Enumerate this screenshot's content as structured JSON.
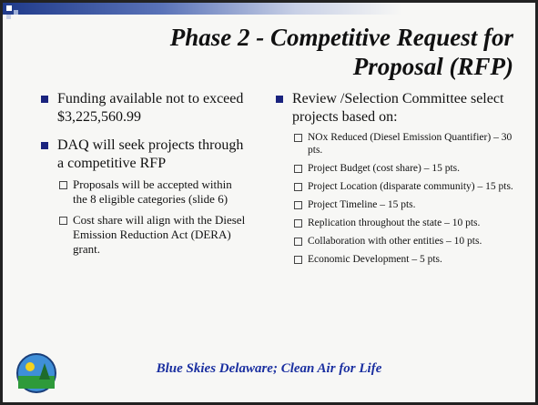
{
  "slide": {
    "title": [
      "Phase 2  - Competitive Request for",
      "Proposal (RFP)"
    ],
    "left": [
      {
        "text": "Funding available not to exceed $3,225,560.99",
        "sub": []
      },
      {
        "text": "DAQ will seek projects through a competitive RFP",
        "sub": [
          "Proposals will be accepted within the 8 eligible categories (slide 6)",
          "Cost share will align with the Diesel Emission Reduction Act (DERA) grant."
        ]
      }
    ],
    "right": [
      {
        "text": "Review /Selection Committee select projects based on:",
        "sub": [
          "NOx Reduced (Diesel Emission Quantifier) – 30 pts.",
          "Project Budget (cost share) – 15 pts.",
          "Project Location (disparate community) – 15 pts.",
          "Project Timeline – 15 pts.",
          "Replication throughout the state – 10 pts.",
          "Collaboration with other entities – 10 pts.",
          "Economic Development – 5 pts."
        ]
      }
    ],
    "footer": "Blue Skies Delaware; Clean Air for Life"
  }
}
